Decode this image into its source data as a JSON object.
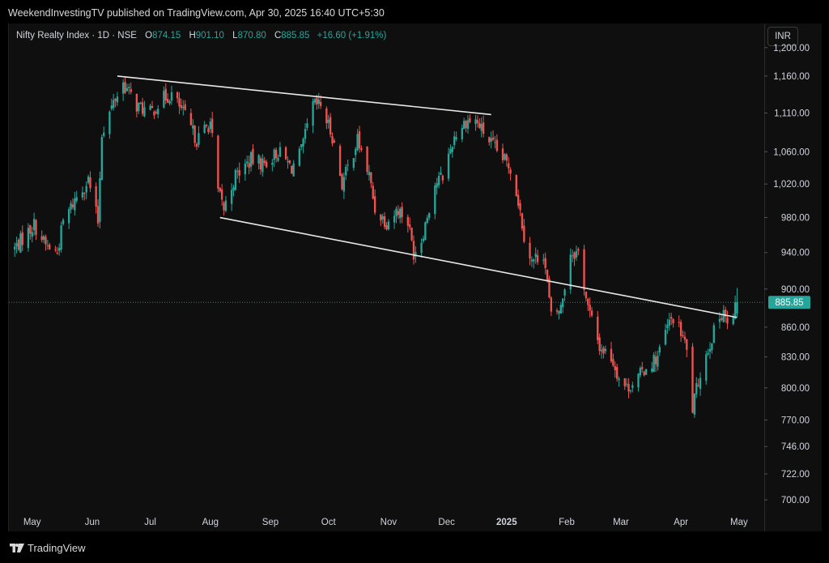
{
  "header": {
    "published": "WeekendInvestingTV published on TradingView.com, Apr 30, 2025 16:40 UTC+5:30"
  },
  "legend": {
    "symbol": "Nifty Realty Index · 1D · NSE",
    "open_label": "O",
    "open": "874.15",
    "high_label": "H",
    "high": "901.10",
    "low_label": "L",
    "low": "870.80",
    "close_label": "C",
    "close": "885.85",
    "change": "+16.60 (+1.91%)"
  },
  "currency": "INR",
  "footer": {
    "brand": "TradingView"
  },
  "colors": {
    "up": "#26a69a",
    "down": "#ef5350",
    "trendline": "#e8e8e8",
    "background": "#0f0f0f"
  },
  "chart_data": {
    "type": "candlestick",
    "title": "Nifty Realty Index · 1D · NSE",
    "y_scale": "log",
    "ylim": [
      690,
      1235
    ],
    "y_ticks": [
      700,
      722,
      746,
      770,
      800,
      830,
      860,
      900,
      940,
      980,
      1020,
      1060,
      1110,
      1160,
      1200
    ],
    "y_tick_labels": [
      "700.00",
      "722.00",
      "746.00",
      "770.00",
      "800.00",
      "830.00",
      "860.00",
      "900.00",
      "940.00",
      "980.00",
      "1,020.00",
      "1,060.00",
      "1,110.00",
      "1,160.00",
      "1,200.00"
    ],
    "x_range": [
      "2024-04-19",
      "2025-05-14"
    ],
    "x_ticks": [
      {
        "date": "2024-05-01",
        "label": "May"
      },
      {
        "date": "2024-06-01",
        "label": "Jun"
      },
      {
        "date": "2024-07-01",
        "label": "Jul"
      },
      {
        "date": "2024-08-01",
        "label": "Aug"
      },
      {
        "date": "2024-09-01",
        "label": "Sep"
      },
      {
        "date": "2024-10-01",
        "label": "Oct"
      },
      {
        "date": "2024-11-01",
        "label": "Nov"
      },
      {
        "date": "2024-12-01",
        "label": "Dec"
      },
      {
        "date": "2025-01-01",
        "label": "2025"
      },
      {
        "date": "2025-02-01",
        "label": "Feb"
      },
      {
        "date": "2025-03-01",
        "label": "Mar"
      },
      {
        "date": "2025-04-01",
        "label": "Apr"
      },
      {
        "date": "2025-05-01",
        "label": "May"
      }
    ],
    "last_price": 885.85,
    "last_price_label": "885.85",
    "trendlines": [
      {
        "from": {
          "date": "2024-06-14",
          "value": 1160
        },
        "to": {
          "date": "2024-12-24",
          "value": 1108
        }
      },
      {
        "from": {
          "date": "2024-08-06",
          "value": 980
        },
        "to": {
          "date": "2025-04-30",
          "value": 870
        }
      }
    ],
    "anchors": [
      [
        "2024-04-22",
        945
      ],
      [
        "2024-05-02",
        972
      ],
      [
        "2024-05-08",
        948
      ],
      [
        "2024-05-14",
        940
      ],
      [
        "2024-05-17",
        975
      ],
      [
        "2024-05-24",
        1005
      ],
      [
        "2024-05-30",
        1025
      ],
      [
        "2024-06-04",
        975
      ],
      [
        "2024-06-06",
        1085
      ],
      [
        "2024-06-13",
        1130
      ],
      [
        "2024-06-17",
        1150
      ],
      [
        "2024-06-24",
        1120
      ],
      [
        "2024-07-01",
        1110
      ],
      [
        "2024-07-08",
        1130
      ],
      [
        "2024-07-12",
        1135
      ],
      [
        "2024-07-18",
        1110
      ],
      [
        "2024-07-25",
        1075
      ],
      [
        "2024-08-01",
        1098
      ],
      [
        "2024-08-05",
        1010
      ],
      [
        "2024-08-08",
        990
      ],
      [
        "2024-08-14",
        1030
      ],
      [
        "2024-08-22",
        1050
      ],
      [
        "2024-08-29",
        1045
      ],
      [
        "2024-09-05",
        1060
      ],
      [
        "2024-09-12",
        1040
      ],
      [
        "2024-09-17",
        1060
      ],
      [
        "2024-09-23",
        1120
      ],
      [
        "2024-09-27",
        1120
      ],
      [
        "2024-10-03",
        1080
      ],
      [
        "2024-10-08",
        1020
      ],
      [
        "2024-10-11",
        1040
      ],
      [
        "2024-10-16",
        1075
      ],
      [
        "2024-10-22",
        1030
      ],
      [
        "2024-10-25",
        990
      ],
      [
        "2024-10-31",
        975
      ],
      [
        "2024-11-06",
        990
      ],
      [
        "2024-11-11",
        975
      ],
      [
        "2024-11-14",
        940
      ],
      [
        "2024-11-18",
        955
      ],
      [
        "2024-11-25",
        1020
      ],
      [
        "2024-11-29",
        1030
      ],
      [
        "2024-12-05",
        1080
      ],
      [
        "2024-12-11",
        1100
      ],
      [
        "2024-12-16",
        1100
      ],
      [
        "2024-12-20",
        1085
      ],
      [
        "2024-12-27",
        1060
      ],
      [
        "2025-01-03",
        1040
      ],
      [
        "2025-01-07",
        1000
      ],
      [
        "2025-01-10",
        960
      ],
      [
        "2025-01-14",
        930
      ],
      [
        "2025-01-20",
        940
      ],
      [
        "2025-01-24",
        870
      ],
      [
        "2025-01-29",
        880
      ],
      [
        "2025-02-03",
        940
      ],
      [
        "2025-02-07",
        940
      ],
      [
        "2025-02-12",
        880
      ],
      [
        "2025-02-18",
        840
      ],
      [
        "2025-02-24",
        830
      ],
      [
        "2025-02-28",
        810
      ],
      [
        "2025-03-04",
        800
      ],
      [
        "2025-03-10",
        810
      ],
      [
        "2025-03-14",
        820
      ],
      [
        "2025-03-20",
        830
      ],
      [
        "2025-03-25",
        860
      ],
      [
        "2025-03-28",
        870
      ],
      [
        "2025-04-02",
        850
      ],
      [
        "2025-04-04",
        835
      ],
      [
        "2025-04-07",
        780
      ],
      [
        "2025-04-11",
        815
      ],
      [
        "2025-04-17",
        850
      ],
      [
        "2025-04-23",
        880
      ],
      [
        "2025-04-25",
        860
      ],
      [
        "2025-04-28",
        870
      ],
      [
        "2025-04-30",
        886
      ]
    ]
  }
}
